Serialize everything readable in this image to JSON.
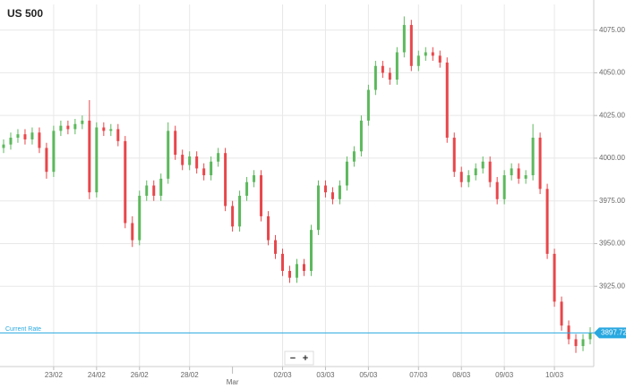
{
  "chart_data": {
    "type": "candlestick",
    "title": "US 500",
    "up_color": "#5cb85c",
    "down_color": "#e8464a",
    "grid": true,
    "categories": [
      null,
      null,
      null,
      null,
      null,
      null,
      null,
      "23/02",
      null,
      null,
      null,
      null,
      null,
      "24/02",
      null,
      null,
      null,
      null,
      null,
      "26/02",
      null,
      null,
      null,
      null,
      null,
      null,
      "28/02",
      null,
      null,
      null,
      null,
      null,
      "Mar",
      null,
      null,
      null,
      null,
      null,
      null,
      "02/03",
      null,
      null,
      null,
      null,
      null,
      "03/03",
      null,
      null,
      null,
      null,
      null,
      "05/03",
      null,
      null,
      null,
      null,
      null,
      null,
      "07/03",
      null,
      null,
      null,
      null,
      null,
      "08/03",
      null,
      null,
      null,
      null,
      null,
      "09/03",
      null,
      null,
      null,
      null,
      null,
      null,
      "10/03",
      null,
      null,
      null,
      null,
      null
    ],
    "open": [
      4006,
      4008,
      4012,
      4014,
      4011,
      4015,
      4006,
      3992,
      4016,
      4019,
      4017,
      4020,
      4022,
      3980,
      4018,
      4016,
      4017,
      4010,
      3962,
      3952,
      3978,
      3984,
      3978,
      3988,
      4016,
      4002,
      3996,
      4001,
      3994,
      3990,
      3998,
      4003,
      3972,
      3960,
      3978,
      3986,
      3990,
      3966,
      3952,
      3944,
      3934,
      3930,
      3938,
      3934,
      3958,
      3984,
      3980,
      3976,
      3984,
      3998,
      4004,
      4022,
      4040,
      4054,
      4050,
      4046,
      4062,
      4078,
      4054,
      4060,
      4062,
      4060,
      4056,
      4012,
      3992,
      3986,
      3990,
      3994,
      3998,
      3986,
      3976,
      3990,
      3994,
      3988,
      3990,
      4012,
      3982,
      3944,
      3916,
      3902,
      3894,
      3890,
      3894
    ],
    "high": [
      4011,
      4015,
      4017,
      4017,
      4018,
      4018,
      4009,
      4019,
      4022,
      4022,
      4023,
      4025,
      4034,
      4021,
      4021,
      4020,
      4020,
      4013,
      3966,
      3981,
      3987,
      3987,
      3991,
      4021,
      4019,
      4005,
      4004,
      4004,
      3997,
      4001,
      4006,
      4006,
      3975,
      3981,
      3989,
      3993,
      3993,
      3969,
      3955,
      3947,
      3937,
      3941,
      3941,
      3961,
      3987,
      3987,
      3983,
      3987,
      4001,
      4007,
      4025,
      4043,
      4057,
      4057,
      4053,
      4065,
      4083,
      4081,
      4063,
      4065,
      4065,
      4063,
      4059,
      4015,
      3995,
      3993,
      3997,
      4001,
      4001,
      3989,
      3993,
      3997,
      3997,
      3993,
      4020,
      4015,
      3985,
      3947,
      3919,
      3905,
      3897,
      3897,
      3901
    ],
    "low": [
      4003,
      4005,
      4009,
      4008,
      4008,
      4003,
      3988,
      3989,
      4013,
      4014,
      4014,
      4017,
      3976,
      3977,
      4013,
      4013,
      4007,
      3959,
      3948,
      3949,
      3975,
      3975,
      3975,
      3985,
      3999,
      3993,
      3993,
      3991,
      3987,
      3987,
      3995,
      3969,
      3957,
      3957,
      3975,
      3983,
      3963,
      3949,
      3941,
      3931,
      3927,
      3927,
      3931,
      3931,
      3955,
      3977,
      3973,
      3973,
      3981,
      3995,
      4001,
      4019,
      4037,
      4047,
      4043,
      4043,
      4059,
      4051,
      4051,
      4057,
      4057,
      4053,
      4009,
      3989,
      3983,
      3983,
      3987,
      3991,
      3983,
      3973,
      3973,
      3987,
      3985,
      3985,
      3987,
      3979,
      3941,
      3913,
      3899,
      3891,
      3886,
      3887,
      3891
    ],
    "close": [
      4008,
      4012,
      4014,
      4011,
      4015,
      4006,
      3992,
      4016,
      4019,
      4017,
      4020,
      4022,
      3980,
      4018,
      4016,
      4017,
      4010,
      3962,
      3952,
      3978,
      3984,
      3978,
      3988,
      4016,
      4002,
      3996,
      4001,
      3994,
      3990,
      3998,
      4003,
      3972,
      3960,
      3978,
      3986,
      3990,
      3966,
      3952,
      3944,
      3934,
      3930,
      3938,
      3934,
      3958,
      3984,
      3980,
      3976,
      3984,
      3998,
      4004,
      4022,
      4040,
      4054,
      4050,
      4046,
      4062,
      4078,
      4054,
      4060,
      4062,
      4060,
      4056,
      4012,
      3992,
      3986,
      3990,
      3994,
      3998,
      3986,
      3976,
      3990,
      3994,
      3988,
      3990,
      4012,
      3982,
      3944,
      3916,
      3902,
      3894,
      3890,
      3894,
      3897.72
    ],
    "ylim": [
      3878,
      4090
    ],
    "yticks": [
      {
        "value": 3925,
        "label": "3925.00"
      },
      {
        "value": 3950,
        "label": "3950.00"
      },
      {
        "value": 3975,
        "label": "3975.00"
      },
      {
        "value": 4000,
        "label": "4000.00"
      },
      {
        "value": 4025,
        "label": "4025.00"
      },
      {
        "value": 4050,
        "label": "4050.00"
      },
      {
        "value": 4075,
        "label": "4075.00"
      }
    ],
    "current_rate": {
      "label": "Current Rate",
      "value": 3897.72,
      "value_label": "3897.72",
      "color": "#29a8e0"
    },
    "zoom_controls": [
      "−",
      "+"
    ]
  }
}
